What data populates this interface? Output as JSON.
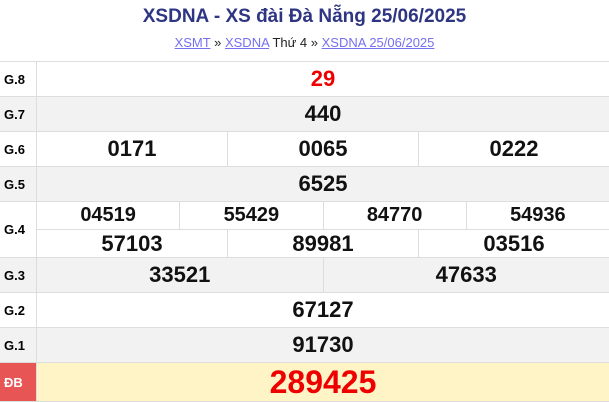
{
  "header": {
    "title": "XSDNA - XS đài Đà Nẵng 25/06/2025",
    "breadcrumb": [
      {
        "label": "XSMT"
      },
      {
        "sep": "»"
      },
      {
        "label": "XSDNA"
      },
      {
        "text": "Thứ 4"
      },
      {
        "sep2": "»"
      },
      {
        "label": "XSDNA 25/06/2025"
      }
    ]
  },
  "prizes": [
    {
      "label": "G.8",
      "lines": [
        [
          "29"
        ]
      ]
    },
    {
      "label": "G.7",
      "lines": [
        [
          "440"
        ]
      ]
    },
    {
      "label": "G.6",
      "lines": [
        [
          "0171",
          "0065",
          "0222"
        ]
      ]
    },
    {
      "label": "G.5",
      "lines": [
        [
          "6525"
        ]
      ]
    },
    {
      "label": "G.4",
      "lines": [
        [
          "04519",
          "55429",
          "84770",
          "54936"
        ],
        [
          "57103",
          "89981",
          "03516"
        ]
      ]
    },
    {
      "label": "G.3",
      "lines": [
        [
          "33521",
          "47633"
        ]
      ]
    },
    {
      "label": "G.2",
      "lines": [
        [
          "67127"
        ]
      ]
    },
    {
      "label": "G.1",
      "lines": [
        [
          "91730"
        ]
      ]
    },
    {
      "label": "ĐB",
      "lines": [
        [
          "289425"
        ]
      ]
    }
  ],
  "colors": {
    "title": "#2e3583",
    "link": "#7570f0",
    "highlight": "#ee0000",
    "special_bg": "#fff4c6",
    "special_label_bg": "#e85555"
  }
}
